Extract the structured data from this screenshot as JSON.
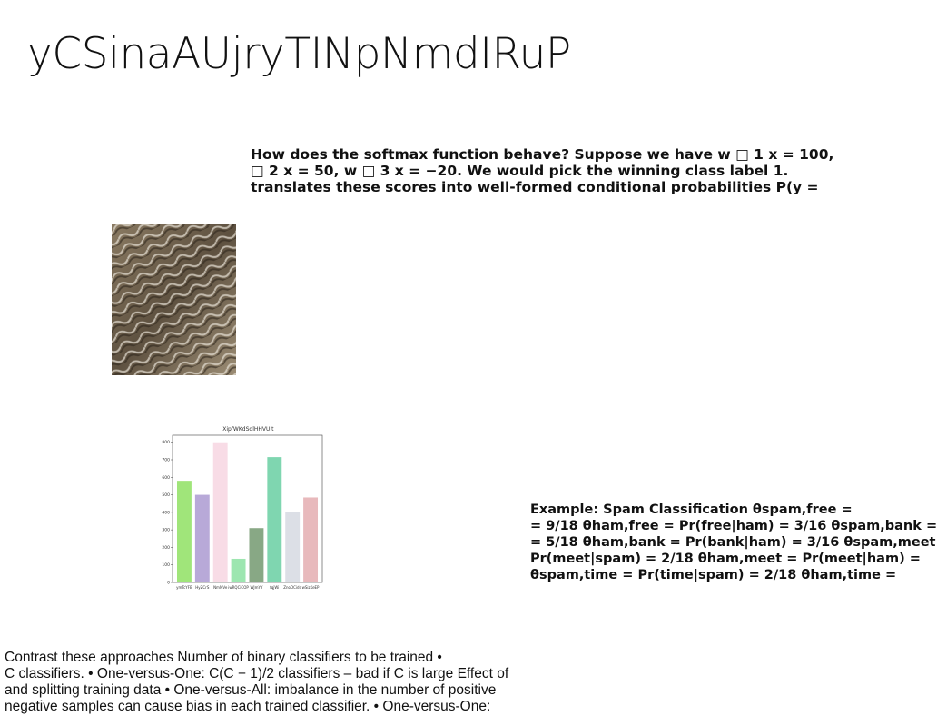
{
  "title": "yCSinaAUjryTINpNmdIRuP",
  "softmax_text": [
    "How does the softmax function behave? Suppose we have w □ 1 x = 100,",
    "□ 2 x = 50, w □ 3 x = −20. We would pick the winning class label 1.",
    "translates these scores into well-formed conditional probabilities P(y ="
  ],
  "chart": {
    "type": "bar",
    "title": "IXipfWKdSdlHHVUIt",
    "categories": [
      "ymTcYFB",
      "HyZCrS",
      "NmMVe",
      "iwRQCiCOP",
      "WJmYY",
      "fqjWi",
      "ZnoOCidd",
      "wSizKeEP"
    ],
    "values": [
      580,
      500,
      800,
      135,
      310,
      715,
      400,
      485
    ],
    "colors": [
      "#a0e57a",
      "#b8a9d8",
      "#f8dce6",
      "#9de6b0",
      "#88a885",
      "#7fd6b0",
      "#dcdfe6",
      "#e8b9bc"
    ],
    "ylim": [
      0,
      840
    ],
    "yticks": [
      0,
      100,
      200,
      300,
      400,
      500,
      600,
      700,
      800
    ]
  },
  "spam_text": [
    "Example: Spam Classification θspam,free =",
    "= 9/18 θham,free = Pr(free|ham) = 3/16 θspam,bank =",
    "= 5/18 θham,bank = Pr(bank|ham) = 3/16 θspam,meet",
    "Pr(meet|spam) = 2/18 θham,meet = Pr(meet|ham) =",
    "θspam,time = Pr(time|spam) = 2/18 θham,time ="
  ],
  "contrast_text": [
    "Contrast these approaches Number of binary classifiers to be trained •",
    "C classifiers. • One-versus-One: C(C − 1)/2 classifiers – bad if C is large Effect of",
    "and splitting training data • One-versus-All: imbalance in the number of positive",
    "negative samples can cause bias in each trained classifier. • One-versus-One:"
  ]
}
